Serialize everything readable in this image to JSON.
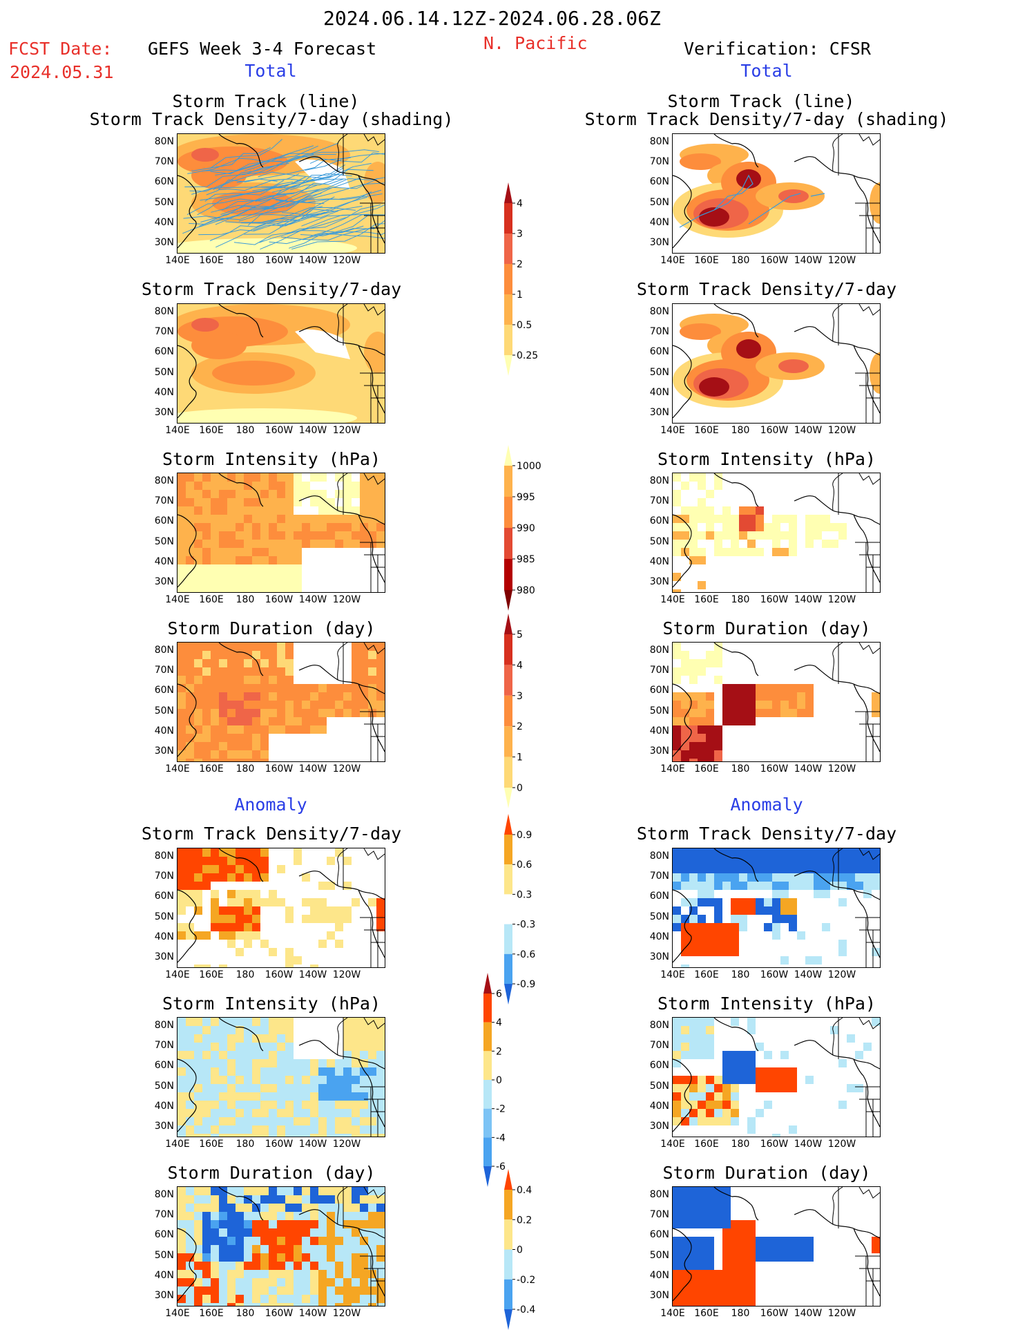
{
  "header": {
    "date_range": "2024.06.14.12Z-2024.06.28.06Z",
    "fcst_label": "FCST Date:",
    "fcst_date": "2024.05.31",
    "model_title": "GEFS Week 3-4 Forecast",
    "region": "N. Pacific",
    "verification": "Verification: CFSR",
    "left_total": "Total",
    "right_total": "Total",
    "left_anomaly": "Anomaly",
    "right_anomaly": "Anomaly"
  },
  "panel_titles": {
    "track_line": "Storm Track (line)",
    "track_density_shading": "Storm Track Density/7-day (shading)",
    "track_density": "Storm Track Density/7-day",
    "intensity": "Storm Intensity (hPa)",
    "duration": "Storm Duration (day)"
  },
  "axes": {
    "lat_labels": [
      "80N",
      "70N",
      "60N",
      "50N",
      "40N",
      "30N"
    ],
    "lon_labels": [
      "140E",
      "160E",
      "180",
      "160W",
      "140W",
      "120W"
    ]
  },
  "colorbars": {
    "density_total": {
      "labels": [
        "4",
        "3",
        "2",
        "1",
        "0.5",
        "0.25"
      ],
      "colors": [
        "#a50f15",
        "#d7301f",
        "#ef6548",
        "#fd8d3c",
        "#feb24c",
        "#fed976",
        "#ffffb2"
      ]
    },
    "intensity_total": {
      "labels": [
        "1000",
        "995",
        "990",
        "985",
        "980"
      ],
      "colors": [
        "#ffffb2",
        "#feb24c",
        "#fd8d3c",
        "#e34a33",
        "#b30000",
        "#7f0000"
      ]
    },
    "duration_total": {
      "labels": [
        "5",
        "4",
        "3",
        "2",
        "1",
        "0"
      ],
      "colors": [
        "#a50f15",
        "#d7301f",
        "#ef6548",
        "#fd8d3c",
        "#feb24c",
        "#fed976",
        "#ffffb2"
      ]
    },
    "density_anom": {
      "labels": [
        "0.9",
        "0.6",
        "0.3",
        "-0.3",
        "-0.6",
        "-0.9"
      ],
      "colors": [
        "#ff4500",
        "#f5a623",
        "#fde68a",
        "#ffffff",
        "#b7e7f7",
        "#4aa3f0",
        "#1e64d8"
      ]
    },
    "intensity_anom": {
      "labels": [
        "6",
        "4",
        "2",
        "0",
        "-2",
        "-4",
        "-6"
      ],
      "colors": [
        "#a50f15",
        "#ff4500",
        "#f5a623",
        "#fde68a",
        "#b7e7f7",
        "#7cc3f5",
        "#4aa3f0",
        "#1e64d8"
      ]
    },
    "duration_anom": {
      "labels": [
        "0.4",
        "0.2",
        "0",
        "-0.2",
        "-0.4"
      ],
      "colors": [
        "#ff4500",
        "#f5a623",
        "#fde68a",
        "#b7e7f7",
        "#4aa3f0",
        "#1e64d8"
      ]
    }
  },
  "colors": {
    "land_outline": "#000000",
    "track_line": "#3a9ad9",
    "title_red": "#e8302a",
    "title_blue": "#2a3ee6"
  }
}
